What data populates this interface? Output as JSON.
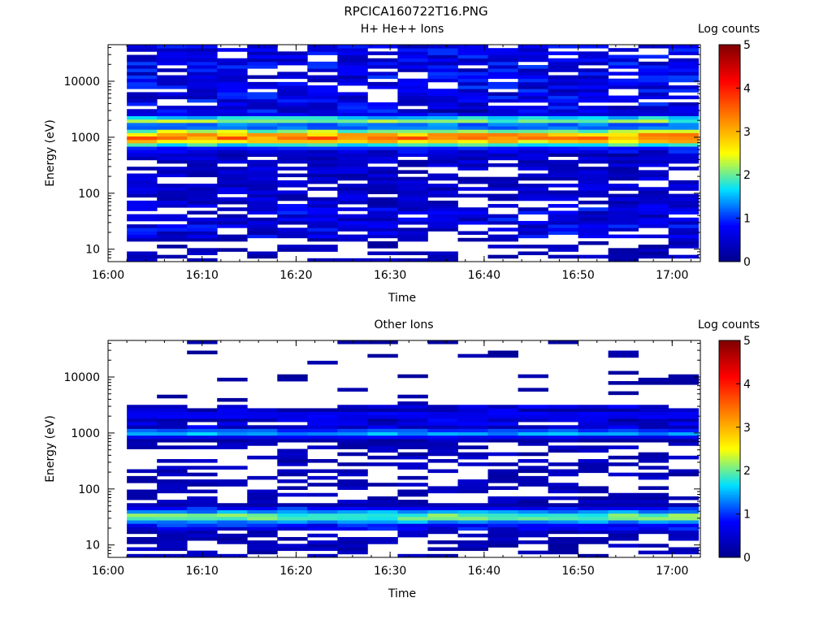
{
  "figure_title": "RPCICA160722T16.PNG",
  "colors": {
    "colormap": [
      "#00008b",
      "#0000ff",
      "#00e0ff",
      "#ffff00",
      "#ff8000",
      "#ff0000",
      "#800000"
    ],
    "background": "#ffffff",
    "axis": "#000000"
  },
  "chart_data": [
    {
      "type": "heatmap",
      "title": "H+ He++ Ions",
      "xlabel": "Time",
      "ylabel": "Energy (eV)",
      "x_range": [
        "16:00",
        "17:03"
      ],
      "x_ticks": [
        "16:00",
        "16:10",
        "16:20",
        "16:30",
        "16:40",
        "16:50",
        "17:00"
      ],
      "y_scale": "log",
      "y_range": [
        6,
        45000
      ],
      "y_ticks": [
        "10",
        "100",
        "1000",
        "10000"
      ],
      "colorbar": {
        "label": "Log counts",
        "range": [
          0,
          5
        ],
        "ticks": [
          "0",
          "1",
          "2",
          "3",
          "4",
          "5"
        ]
      },
      "time_start": "16:02",
      "time_step_min": 3.2,
      "n_columns": 19,
      "n_energy_bins": 64,
      "bands": [
        {
          "center_eV": 1000,
          "peak_log_counts": 3.3,
          "width_dex": 0.12
        },
        {
          "center_eV": 2000,
          "peak_log_counts": 2.1,
          "width_dex": 0.07
        },
        {
          "center_eV": 1350,
          "peak_log_counts": 1.4,
          "width_dex": 0.05
        }
      ],
      "background_levels": [
        {
          "from_eV": 6,
          "to_eV": 15,
          "mean_log_counts": 0.35,
          "fill_fraction": 0.45
        },
        {
          "from_eV": 15,
          "to_eV": 60,
          "mean_log_counts": 0.7,
          "fill_fraction": 0.8
        },
        {
          "from_eV": 60,
          "to_eV": 500,
          "mean_log_counts": 0.5,
          "fill_fraction": 0.7
        },
        {
          "from_eV": 500,
          "to_eV": 45000,
          "mean_log_counts": 0.75,
          "fill_fraction": 0.82
        }
      ]
    },
    {
      "type": "heatmap",
      "title": "Other Ions",
      "xlabel": "Time",
      "ylabel": "Energy (eV)",
      "x_range": [
        "16:00",
        "17:03"
      ],
      "x_ticks": [
        "16:00",
        "16:10",
        "16:20",
        "16:30",
        "16:40",
        "16:50",
        "17:00"
      ],
      "y_scale": "log",
      "y_range": [
        6,
        45000
      ],
      "y_ticks": [
        "10",
        "100",
        "1000",
        "10000"
      ],
      "colorbar": {
        "label": "Log counts",
        "range": [
          0,
          5
        ],
        "ticks": [
          "0",
          "1",
          "2",
          "3",
          "4",
          "5"
        ]
      },
      "time_start": "16:02",
      "time_step_min": 3.2,
      "n_columns": 19,
      "n_energy_bins": 64,
      "bands": [
        {
          "center_eV": 1000,
          "peak_log_counts": 1.5,
          "width_dex": 0.06
        },
        {
          "center_eV": 32,
          "peak_log_counts": 2.1,
          "width_dex": 0.1
        },
        {
          "center_eV": 2100,
          "peak_log_counts": 0.9,
          "width_dex": 0.05
        }
      ],
      "background_levels": [
        {
          "from_eV": 6,
          "to_eV": 18,
          "mean_log_counts": 0.35,
          "fill_fraction": 0.5
        },
        {
          "from_eV": 18,
          "to_eV": 50,
          "mean_log_counts": 0.8,
          "fill_fraction": 0.85
        },
        {
          "from_eV": 50,
          "to_eV": 800,
          "mean_log_counts": 0.35,
          "fill_fraction": 0.45
        },
        {
          "from_eV": 800,
          "to_eV": 3000,
          "mean_log_counts": 0.6,
          "fill_fraction": 0.65
        },
        {
          "from_eV": 3000,
          "to_eV": 45000,
          "mean_log_counts": 0.2,
          "fill_fraction": 0.12
        }
      ]
    }
  ]
}
